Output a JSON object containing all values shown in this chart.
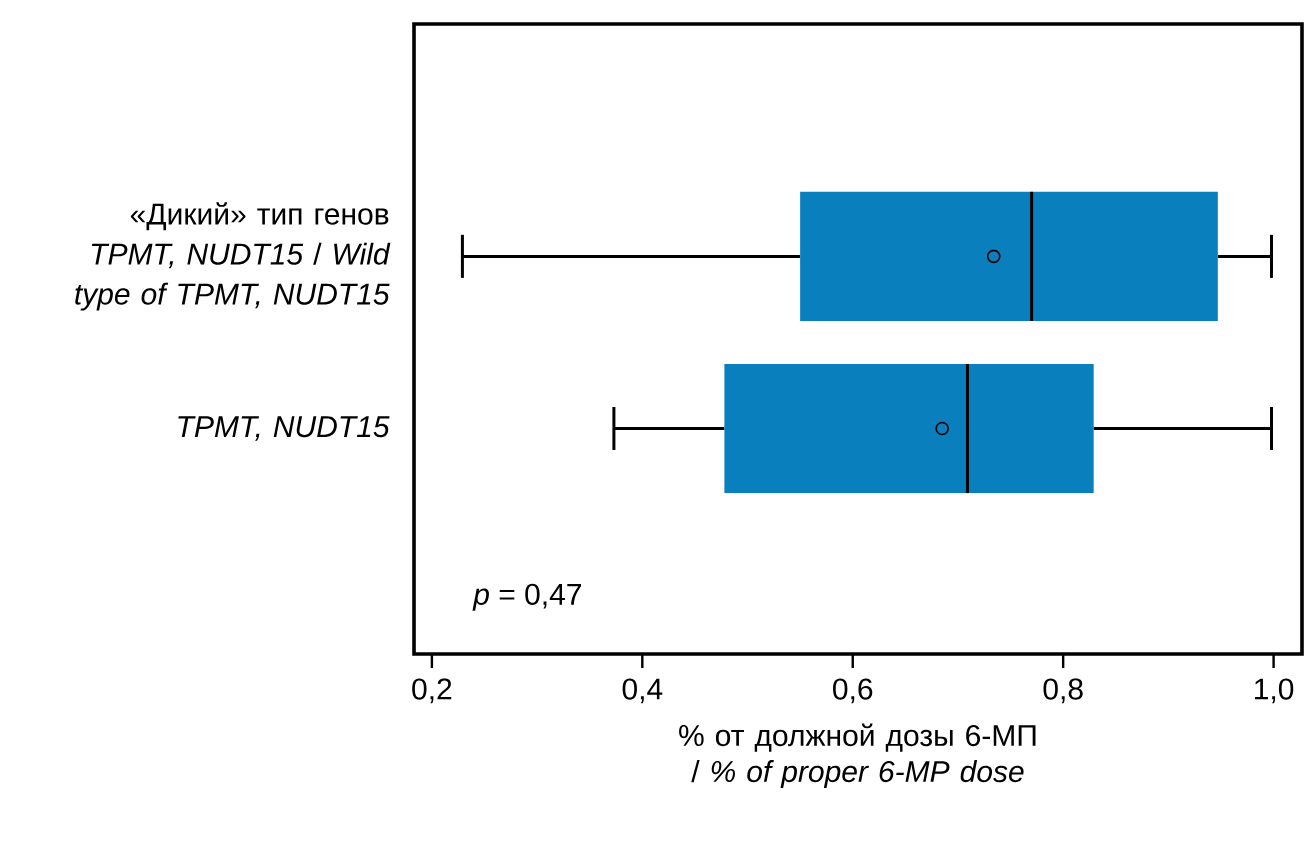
{
  "chart_data": {
    "type": "box",
    "orientation": "horizontal",
    "categories": [
      "«Дикий» тип генов *TPMT, NUDT15* / *Wild type of TPMT, NUDT15*",
      "*TPMT, NUDT15*"
    ],
    "boxes": [
      {
        "low": 0.229,
        "q1": 0.55,
        "median": 0.77,
        "q3": 0.947,
        "high": 0.998,
        "mean": 0.734
      },
      {
        "low": 0.373,
        "q1": 0.478,
        "median": 0.709,
        "q3": 0.829,
        "high": 0.998,
        "mean": 0.685
      }
    ],
    "color": "#0a7fbd",
    "xlim": [
      0.183,
      1.027
    ],
    "xticks": [
      {
        "value": 0.2,
        "label": "0,2"
      },
      {
        "value": 0.4,
        "label": "0,4"
      },
      {
        "value": 0.6,
        "label": "0,6"
      },
      {
        "value": 0.8,
        "label": "0,8"
      },
      {
        "value": 1.0,
        "label": "1,0"
      }
    ],
    "xlabel": "% от должной дозы 6-МП / *% of proper 6-MP dose*",
    "annotations": [
      "*p* = 0,47"
    ],
    "grid": false
  }
}
